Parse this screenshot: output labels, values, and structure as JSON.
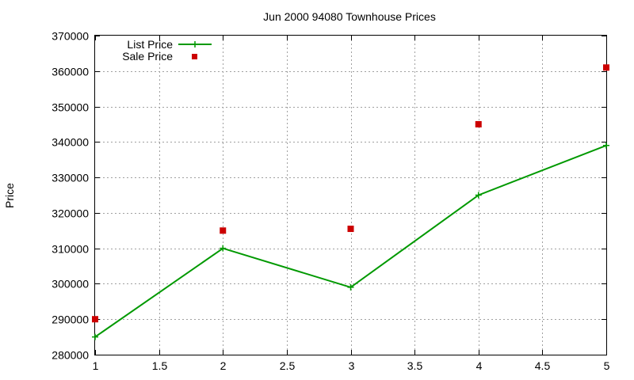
{
  "chart_data": {
    "type": "line",
    "title": "Jun 2000 94080 Townhouse Prices",
    "xlabel": "",
    "ylabel": "Price",
    "xlim": [
      1,
      5
    ],
    "ylim": [
      280000,
      370000
    ],
    "x_ticks": [
      "1",
      "1.5",
      "2",
      "2.5",
      "3",
      "3.5",
      "4",
      "4.5",
      "5"
    ],
    "y_ticks": [
      "280000",
      "290000",
      "300000",
      "310000",
      "320000",
      "330000",
      "340000",
      "350000",
      "360000",
      "370000"
    ],
    "grid": true,
    "legend_position": "top-left",
    "series": [
      {
        "name": "List Price",
        "style": "linespoints",
        "color": "#009900",
        "marker": "plus",
        "x": [
          1,
          2,
          3,
          4,
          5
        ],
        "y": [
          285000,
          310000,
          299000,
          325000,
          339000
        ]
      },
      {
        "name": "Sale Price",
        "style": "points",
        "color": "#cc0000",
        "marker": "square",
        "x": [
          1,
          2,
          3,
          4,
          5
        ],
        "y": [
          290000,
          315000,
          315500,
          345000,
          361000
        ]
      }
    ]
  }
}
